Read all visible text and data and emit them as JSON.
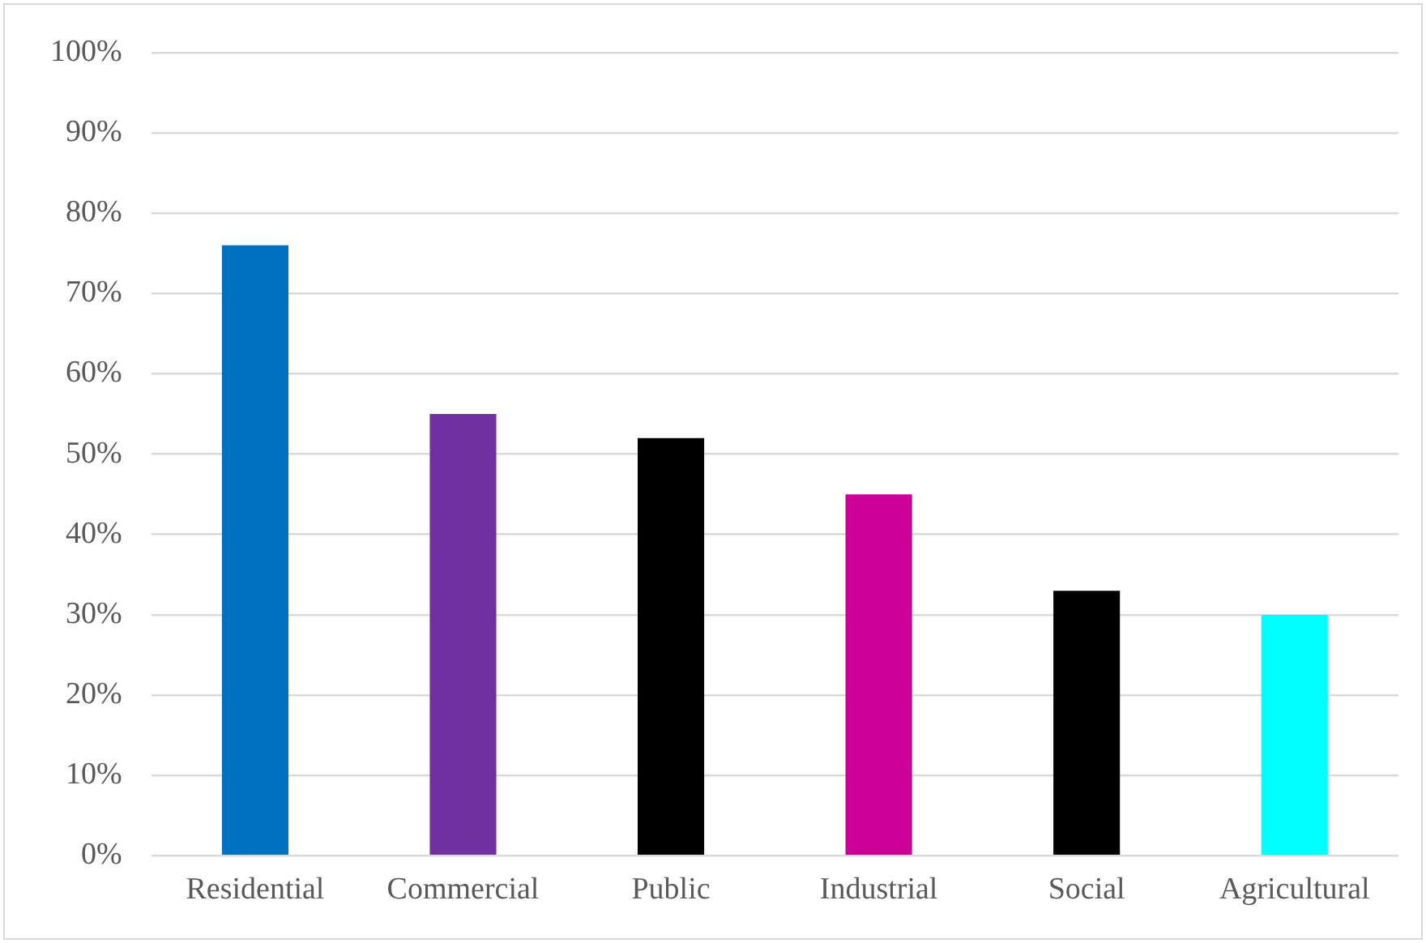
{
  "chart_data": {
    "type": "bar",
    "categories": [
      "Residential",
      "Commercial",
      "Public",
      "Industrial",
      "Social",
      "Agricultural"
    ],
    "values": [
      76,
      55,
      52,
      45,
      33,
      30
    ],
    "colors": [
      "#0070c0",
      "#7030a0",
      "#000000",
      "#cc0099",
      "#000000",
      "#00ffff"
    ],
    "ylim": [
      0,
      100
    ],
    "yticks": [
      {
        "value": 0,
        "label": "0%"
      },
      {
        "value": 10,
        "label": "10%"
      },
      {
        "value": 20,
        "label": "20%"
      },
      {
        "value": 30,
        "label": "30%"
      },
      {
        "value": 40,
        "label": "40%"
      },
      {
        "value": 50,
        "label": "50%"
      },
      {
        "value": 60,
        "label": "60%"
      },
      {
        "value": 70,
        "label": "70%"
      },
      {
        "value": 80,
        "label": "80%"
      },
      {
        "value": 90,
        "label": "90%"
      },
      {
        "value": 100,
        "label": "100%"
      }
    ],
    "grid": "y"
  }
}
